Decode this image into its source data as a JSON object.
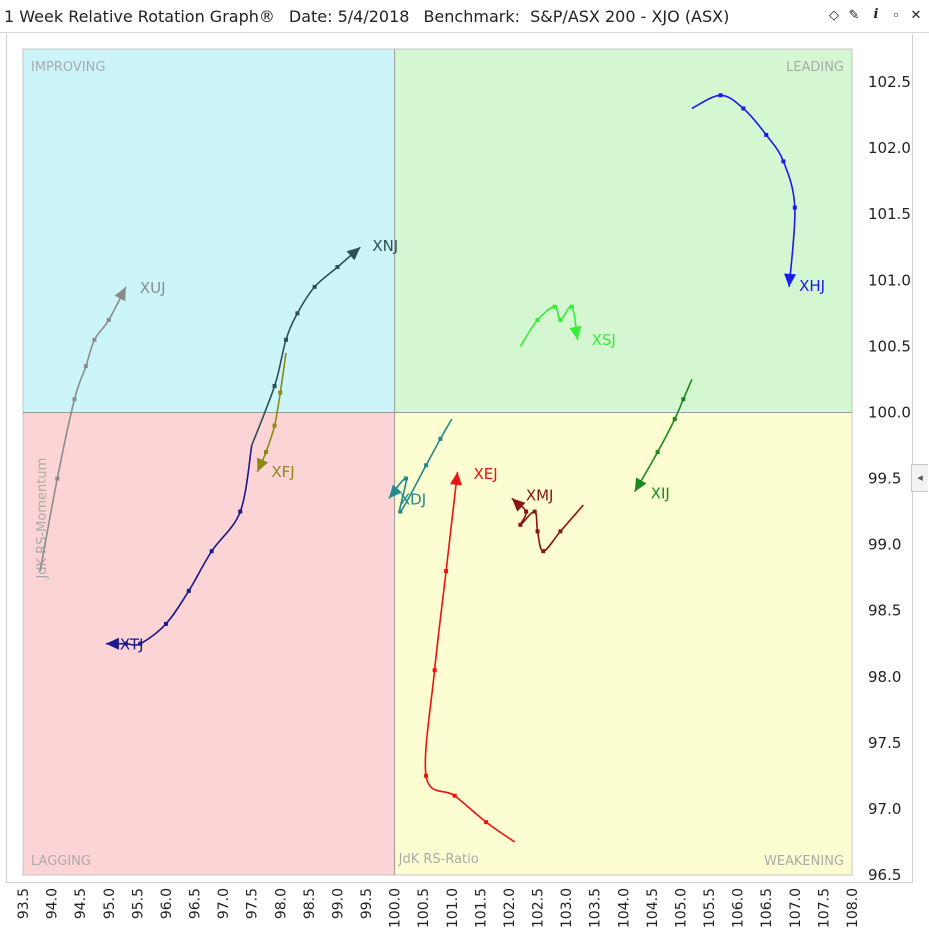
{
  "header": {
    "title": "1 Week Relative Rotation Graph®",
    "date": "Date: 5/4/2018",
    "benchmark": "Benchmark:  S&P/ASX 200 - XJO (ASX)",
    "tools": [
      {
        "name": "diamond-icon",
        "glyph": "◇"
      },
      {
        "name": "pin-icon",
        "glyph": "✎"
      },
      {
        "name": "info-icon",
        "glyph": "i"
      },
      {
        "name": "maximize-icon",
        "glyph": "▫"
      },
      {
        "name": "close-icon",
        "glyph": "✕"
      }
    ],
    "side_tab_glyph": "◂"
  },
  "chart_data": {
    "type": "scatter",
    "xlabel": "JdK RS-Ratio",
    "ylabel": "JdK RS-Momentum",
    "xlim": [
      93.5,
      108.0
    ],
    "ylim": [
      96.5,
      102.75
    ],
    "center": [
      100.0,
      100.0
    ],
    "x_ticks": [
      "93.5",
      "94.0",
      "94.5",
      "95.0",
      "95.5",
      "96.0",
      "96.5",
      "97.0",
      "97.5",
      "98.0",
      "98.5",
      "99.0",
      "99.5",
      "100.0",
      "100.5",
      "101.0",
      "101.5",
      "102.0",
      "102.5",
      "103.0",
      "103.5",
      "104.0",
      "104.5",
      "105.0",
      "105.5",
      "106.0",
      "106.5",
      "107.0",
      "107.5",
      "108.0"
    ],
    "y_ticks": [
      "96.5",
      "97.0",
      "97.5",
      "98.0",
      "98.5",
      "99.0",
      "99.5",
      "100.0",
      "100.5",
      "101.0",
      "101.5",
      "102.0",
      "102.5"
    ],
    "quadrants": [
      {
        "label": "IMPROVING",
        "color": "#ccf5fa"
      },
      {
        "label": "LEADING",
        "color": "#d4f7d2"
      },
      {
        "label": "LAGGING",
        "color": "#fcd4d6"
      },
      {
        "label": "WEAKENING",
        "color": "#fdfdd2"
      }
    ],
    "series": [
      {
        "name": "XHJ",
        "color": "#1a1aee",
        "x": [
          105.2,
          105.7,
          106.1,
          106.5,
          106.8,
          107.0,
          106.9
        ],
        "y": [
          102.3,
          102.4,
          102.3,
          102.1,
          101.9,
          101.55,
          100.95
        ]
      },
      {
        "name": "XNJ",
        "color": "#2f4f56",
        "x": [
          97.5,
          97.9,
          98.1,
          98.3,
          98.6,
          99.0,
          99.4
        ],
        "y": [
          99.75,
          100.2,
          100.55,
          100.75,
          100.95,
          101.1,
          101.25
        ]
      },
      {
        "name": "XUJ",
        "color": "#8c8c8c",
        "x": [
          93.8,
          94.1,
          94.4,
          94.6,
          94.75,
          95.0,
          95.3
        ],
        "y": [
          98.8,
          99.5,
          100.1,
          100.35,
          100.55,
          100.7,
          100.95
        ]
      },
      {
        "name": "XSJ",
        "color": "#33ee33",
        "x": [
          102.2,
          102.5,
          102.8,
          102.9,
          103.1,
          103.2
        ],
        "y": [
          100.5,
          100.7,
          100.8,
          100.7,
          100.8,
          100.55
        ]
      },
      {
        "name": "XFJ",
        "color": "#8a8a12",
        "x": [
          98.1,
          98.0,
          97.9,
          97.75,
          97.6
        ],
        "y": [
          100.45,
          100.15,
          99.9,
          99.7,
          99.55
        ]
      },
      {
        "name": "XIJ",
        "color": "#1a8a1a",
        "x": [
          105.2,
          105.05,
          104.9,
          104.6,
          104.2
        ],
        "y": [
          100.25,
          100.1,
          99.95,
          99.7,
          99.4
        ]
      },
      {
        "name": "XDJ",
        "color": "#1f8a8a",
        "x": [
          101.0,
          100.8,
          100.55,
          100.1,
          100.2,
          99.9
        ],
        "y": [
          99.95,
          99.8,
          99.6,
          99.25,
          99.5,
          99.35
        ]
      },
      {
        "name": "XEJ",
        "color": "#ee1111",
        "x": [
          102.1,
          101.6,
          101.05,
          100.55,
          100.7,
          100.9,
          101.1
        ],
        "y": [
          96.75,
          96.9,
          97.1,
          97.25,
          98.05,
          98.8,
          99.55
        ]
      },
      {
        "name": "XMJ",
        "color": "#8a1414",
        "x": [
          103.3,
          102.9,
          102.6,
          102.5,
          102.45,
          102.2,
          102.3,
          102.05
        ],
        "y": [
          99.3,
          99.1,
          98.95,
          99.1,
          99.25,
          99.15,
          99.25,
          99.35
        ]
      },
      {
        "name": "XTJ",
        "color": "#1a1a8a",
        "x": [
          97.5,
          97.3,
          96.8,
          96.4,
          96.0,
          95.55,
          95.3,
          94.95
        ],
        "y": [
          99.75,
          99.25,
          98.95,
          98.65,
          98.4,
          98.25,
          98.25,
          98.25
        ]
      }
    ]
  }
}
